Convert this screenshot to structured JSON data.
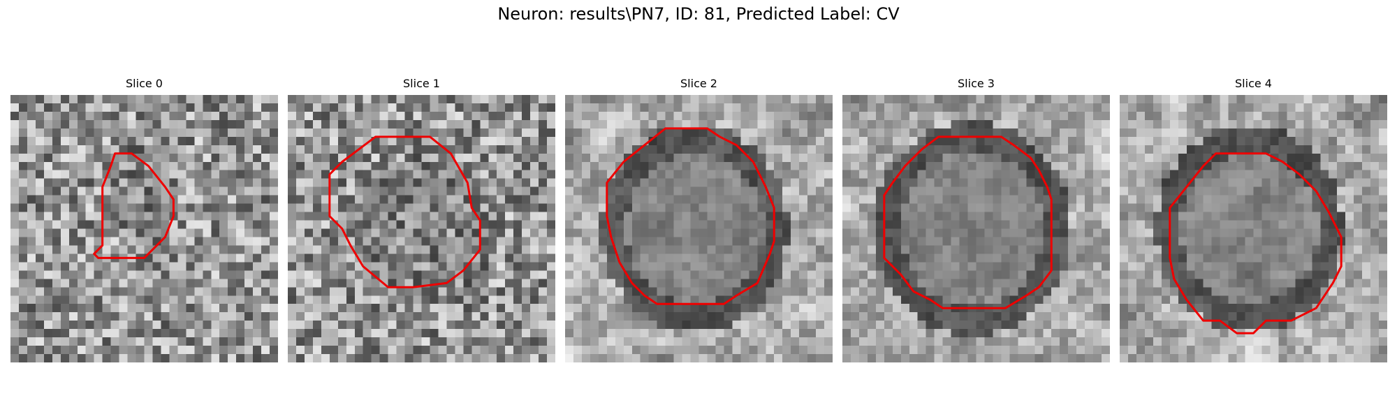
{
  "figure": {
    "title": "Neuron: results\\PN7, ID: 81, Predicted Label: CV"
  },
  "grid_size": 32,
  "contour_color": "#ee0000",
  "slices": [
    {
      "title": "Slice 0",
      "seed": 11,
      "style": "noise",
      "center": [
        15.5,
        12.0
      ],
      "radius": [
        4.0,
        6.5
      ],
      "dark_ring": false,
      "contour": [
        [
          12.5,
          7.0
        ],
        [
          14.5,
          7.0
        ],
        [
          16.5,
          8.5
        ],
        [
          18.5,
          11.0
        ],
        [
          19.5,
          12.5
        ],
        [
          19.5,
          14.5
        ],
        [
          18.5,
          17.0
        ],
        [
          16.0,
          19.5
        ],
        [
          10.5,
          19.5
        ],
        [
          10.0,
          19.0
        ],
        [
          11.0,
          18.0
        ],
        [
          11.0,
          11.0
        ],
        [
          12.0,
          8.5
        ]
      ]
    },
    {
      "title": "Slice 1",
      "seed": 23,
      "style": "noise",
      "center": [
        16.5,
        16.0
      ],
      "radius": [
        9.0,
        9.0
      ],
      "dark_ring": false,
      "contour": [
        [
          10.5,
          5.0
        ],
        [
          17.0,
          5.0
        ],
        [
          19.5,
          7.0
        ],
        [
          21.5,
          10.5
        ],
        [
          22.0,
          13.5
        ],
        [
          23.0,
          15.0
        ],
        [
          23.0,
          18.5
        ],
        [
          21.0,
          21.0
        ],
        [
          19.0,
          22.5
        ],
        [
          15.0,
          23.0
        ],
        [
          12.0,
          23.0
        ],
        [
          9.0,
          20.5
        ],
        [
          7.5,
          18.0
        ],
        [
          6.5,
          16.0
        ],
        [
          5.0,
          14.5
        ],
        [
          5.0,
          9.5
        ],
        [
          6.5,
          8.0
        ]
      ]
    },
    {
      "title": "Slice 2",
      "seed": 37,
      "style": "smooth",
      "center": [
        15.5,
        16.0
      ],
      "radius": [
        10.0,
        11.0
      ],
      "dark_ring": true,
      "contour": [
        [
          12.0,
          4.0
        ],
        [
          17.0,
          4.0
        ],
        [
          18.5,
          5.0
        ],
        [
          20.5,
          6.0
        ],
        [
          22.5,
          8.0
        ],
        [
          24.0,
          11.0
        ],
        [
          25.0,
          13.5
        ],
        [
          25.0,
          17.5
        ],
        [
          24.5,
          19.0
        ],
        [
          23.0,
          22.5
        ],
        [
          20.5,
          24.0
        ],
        [
          19.0,
          25.0
        ],
        [
          11.0,
          25.0
        ],
        [
          9.5,
          24.0
        ],
        [
          8.0,
          22.5
        ],
        [
          6.5,
          20.0
        ],
        [
          5.5,
          17.0
        ],
        [
          5.0,
          14.5
        ],
        [
          5.0,
          10.5
        ],
        [
          7.0,
          8.0
        ],
        [
          9.5,
          6.0
        ]
      ]
    },
    {
      "title": "Slice 3",
      "seed": 53,
      "style": "smooth",
      "center": [
        15.5,
        16.0
      ],
      "radius": [
        10.5,
        11.5
      ],
      "dark_ring": true,
      "contour": [
        [
          11.5,
          5.0
        ],
        [
          19.0,
          5.0
        ],
        [
          20.5,
          6.0
        ],
        [
          22.5,
          7.5
        ],
        [
          23.5,
          9.0
        ],
        [
          24.5,
          11.0
        ],
        [
          25.0,
          12.5
        ],
        [
          25.0,
          21.0
        ],
        [
          23.5,
          23.0
        ],
        [
          22.0,
          24.0
        ],
        [
          19.5,
          25.5
        ],
        [
          12.0,
          25.5
        ],
        [
          10.5,
          24.5
        ],
        [
          8.5,
          23.5
        ],
        [
          7.0,
          21.5
        ],
        [
          5.0,
          19.5
        ],
        [
          5.0,
          12.0
        ],
        [
          6.0,
          10.5
        ],
        [
          7.5,
          8.5
        ],
        [
          9.5,
          6.5
        ]
      ]
    },
    {
      "title": "Slice 4",
      "seed": 71,
      "style": "smooth",
      "center": [
        15.5,
        16.0
      ],
      "radius": [
        10.0,
        11.0
      ],
      "dark_ring": true,
      "contour": [
        [
          11.5,
          7.0
        ],
        [
          17.5,
          7.0
        ],
        [
          19.5,
          8.0
        ],
        [
          21.5,
          9.5
        ],
        [
          23.5,
          11.5
        ],
        [
          25.0,
          14.0
        ],
        [
          26.5,
          17.0
        ],
        [
          26.5,
          20.5
        ],
        [
          25.5,
          22.5
        ],
        [
          23.5,
          25.5
        ],
        [
          20.5,
          27.0
        ],
        [
          17.5,
          27.0
        ],
        [
          16.0,
          28.5
        ],
        [
          14.0,
          28.5
        ],
        [
          12.0,
          27.0
        ],
        [
          10.0,
          27.0
        ],
        [
          8.0,
          24.5
        ],
        [
          6.5,
          22.0
        ],
        [
          6.0,
          19.5
        ],
        [
          6.0,
          13.5
        ],
        [
          8.0,
          11.0
        ],
        [
          10.0,
          8.5
        ]
      ]
    }
  ]
}
